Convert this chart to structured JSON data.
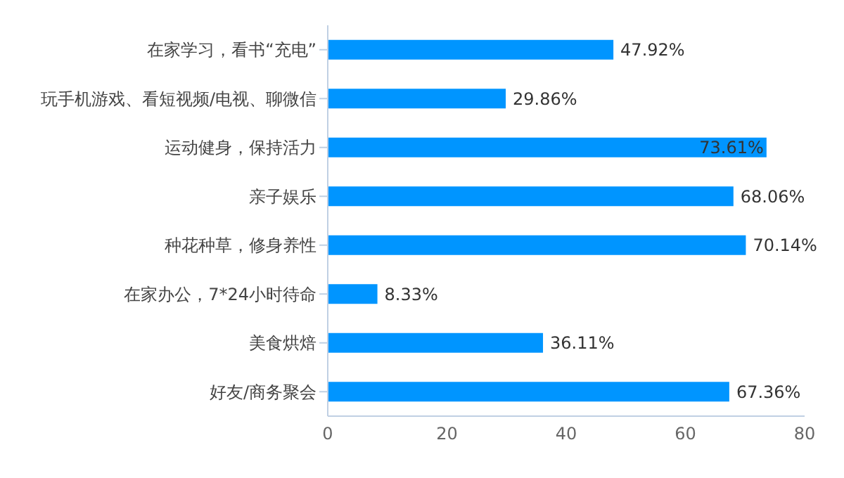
{
  "chart_data": {
    "type": "bar",
    "orientation": "horizontal",
    "categories": [
      "在家学习，看书“充电”",
      "玩手机游戏、看短视频/电视、聊微信",
      "运动健身，保持活力",
      "亲子娱乐",
      "种花种草，修身养性",
      "在家办公，7*24小时待命",
      "美食烘焙",
      "好友/商务聚会"
    ],
    "values": [
      47.92,
      29.86,
      73.61,
      68.06,
      70.14,
      8.33,
      36.11,
      67.36
    ],
    "value_labels": [
      "47.92%",
      "29.86%",
      "73.61%",
      "68.06%",
      "70.14%",
      "8.33%",
      "36.11%",
      "67.36%"
    ],
    "color": "#0095ff",
    "xlim": [
      0,
      80
    ],
    "xticks": [
      0,
      20,
      40,
      60,
      80
    ],
    "grid": false,
    "legend": false
  }
}
